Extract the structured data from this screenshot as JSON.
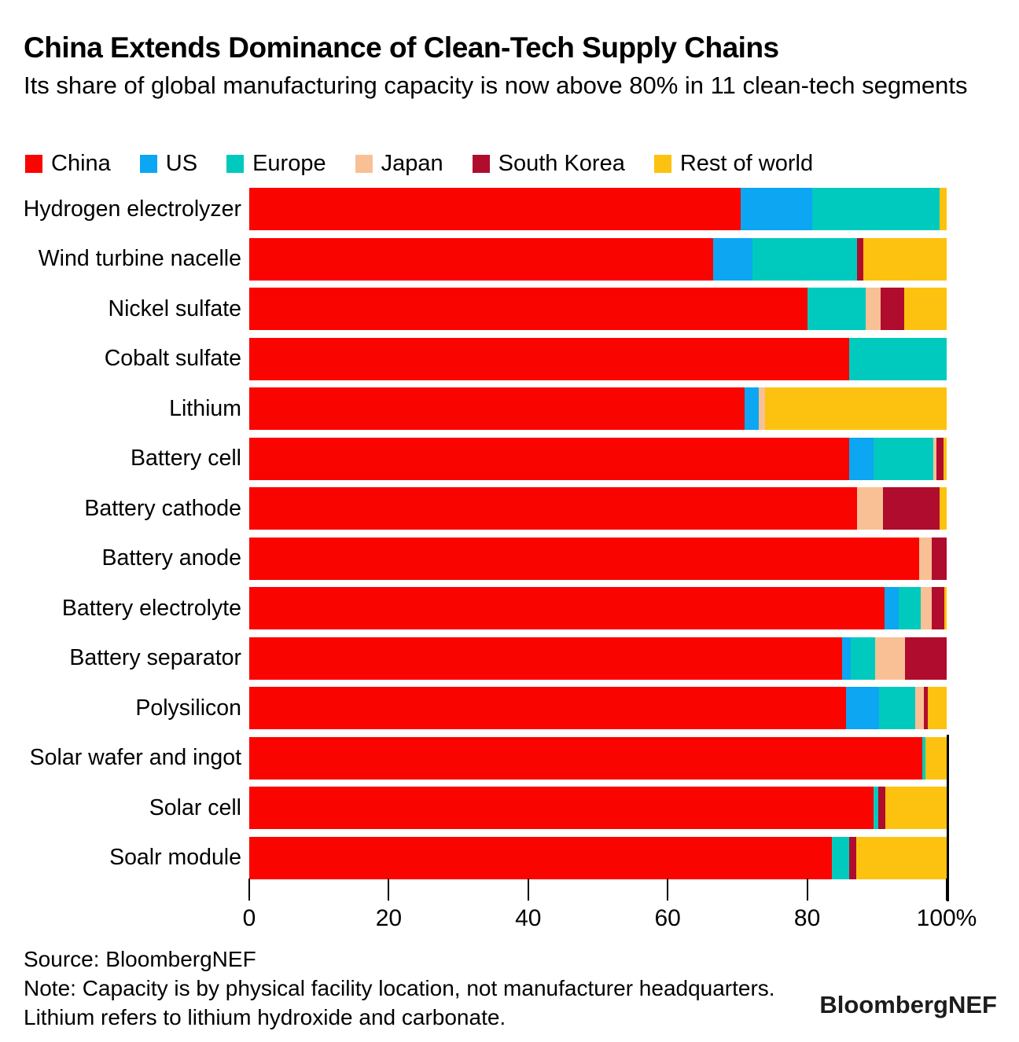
{
  "title": "China Extends Dominance of Clean-Tech Supply Chains",
  "subtitle": "Its share of global manufacturing capacity is now above 80% in 11 clean-tech segments",
  "chart_data": {
    "type": "bar",
    "stacked": true,
    "orientation": "horizontal",
    "unit": "percent share of global manufacturing capacity",
    "xlim": [
      0,
      100
    ],
    "x_ticks": [
      "0",
      "20",
      "40",
      "60",
      "80",
      "100%"
    ],
    "grid": false,
    "legend_position": "top",
    "categories": [
      "Hydrogen electrolyzer",
      "Wind turbine nacelle",
      "Nickel sulfate",
      "Cobalt sulfate",
      "Lithium",
      "Battery cell",
      "Battery cathode",
      "Battery anode",
      "Battery electrolyte",
      "Battery separator",
      "Polysilicon",
      "Solar wafer and ingot",
      "Solar cell",
      "Soalr module"
    ],
    "series": [
      {
        "name": "China",
        "color": "#fa0400",
        "values": [
          70.5,
          66.5,
          80.0,
          86.0,
          71.0,
          86.0,
          87.2,
          96.1,
          91.1,
          85.0,
          85.6,
          96.5,
          89.5,
          83.5
        ]
      },
      {
        "name": "US",
        "color": "#0ca6f2",
        "values": [
          10.2,
          5.7,
          0,
          0,
          2.0,
          3.5,
          0,
          0,
          2.0,
          1.3,
          4.7,
          0,
          0,
          0
        ]
      },
      {
        "name": "Europe",
        "color": "#00cabd",
        "values": [
          18.3,
          14.9,
          8.4,
          14.0,
          0,
          8.6,
          0,
          0,
          3.2,
          3.4,
          5.2,
          0.5,
          0.7,
          2.5
        ]
      },
      {
        "name": "Japan",
        "color": "#f9c096",
        "values": [
          0,
          0,
          2.1,
          0,
          1.0,
          0.4,
          3.7,
          1.8,
          1.6,
          4.3,
          1.2,
          0,
          0,
          0
        ]
      },
      {
        "name": "South Korea",
        "color": "#b00c2d",
        "values": [
          0,
          0.9,
          3.4,
          0,
          0,
          1.0,
          8.1,
          2.1,
          1.8,
          6.0,
          0.6,
          0,
          1.0,
          1.0
        ]
      },
      {
        "name": "Rest of world",
        "color": "#fdc20f",
        "values": [
          1.0,
          12.0,
          6.1,
          0,
          26.0,
          0.5,
          1.0,
          0,
          0.3,
          0,
          2.7,
          3.0,
          8.8,
          13.0
        ]
      }
    ]
  },
  "footer": {
    "source": "Source: BloombergNEF",
    "note_line1": "Note: Capacity is by physical facility location, not manufacturer headquarters.",
    "note_line2": "Lithium refers to lithium hydroxide and carbonate."
  },
  "brand": "BloombergNEF"
}
